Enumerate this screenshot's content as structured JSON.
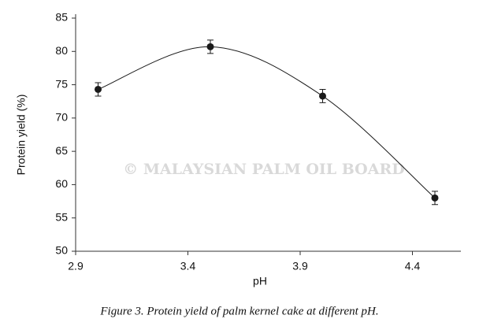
{
  "chart_data": {
    "type": "scatter",
    "x_label": "pH",
    "y_label": "Protein yield (%)",
    "x": [
      3.0,
      3.5,
      4.0,
      4.5
    ],
    "values": [
      74.3,
      80.7,
      73.3,
      58.0
    ],
    "errors": [
      1.0,
      1.0,
      1.0,
      1.0
    ],
    "color": "#1a1a1a",
    "smooth_line": true,
    "xlim": [
      2.9,
      4.6
    ],
    "xticks": [
      2.9,
      3.4,
      3.9,
      4.4
    ],
    "ylim": [
      50,
      85
    ],
    "yticks": [
      50,
      55,
      60,
      65,
      70,
      75,
      80,
      85
    ],
    "watermark": "© MALAYSIAN PALM OIL BOARD",
    "caption": "Figure 3. Protein yield of palm kernel cake at different pH."
  }
}
